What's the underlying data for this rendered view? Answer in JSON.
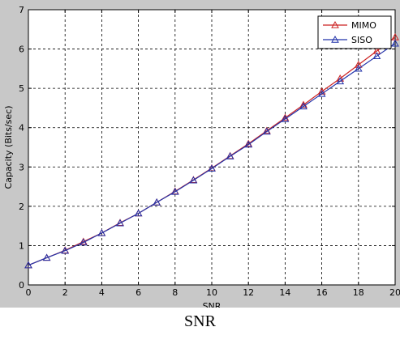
{
  "chart_data": {
    "type": "line",
    "title": "",
    "xlabel": "SNR",
    "ylabel": "Capacity (Bits/sec)",
    "xlim": [
      0,
      20
    ],
    "ylim": [
      0,
      7
    ],
    "x_ticks": [
      "0",
      "2",
      "4",
      "6",
      "8",
      "10",
      "12",
      "14",
      "16",
      "18",
      "20"
    ],
    "y_ticks": [
      "0",
      "1",
      "2",
      "3",
      "4",
      "5",
      "6",
      "7"
    ],
    "grid": true,
    "legend_position": "top-right",
    "x": [
      0,
      1,
      2,
      3,
      4,
      5,
      6,
      7,
      8,
      9,
      10,
      11,
      12,
      13,
      14,
      15,
      16,
      17,
      18,
      19,
      20
    ],
    "series": [
      {
        "name": "MIMO",
        "color": "#cc2222",
        "marker": "triangle",
        "values": [
          0.5,
          0.69,
          0.88,
          1.1,
          1.32,
          1.58,
          1.82,
          2.1,
          2.38,
          2.67,
          2.97,
          3.28,
          3.59,
          3.92,
          4.25,
          4.58,
          4.92,
          5.25,
          5.6,
          5.95,
          6.3
        ]
      },
      {
        "name": "SISO",
        "color": "#2233aa",
        "marker": "triangle",
        "values": [
          0.5,
          0.69,
          0.87,
          1.08,
          1.32,
          1.57,
          1.82,
          2.1,
          2.37,
          2.66,
          2.96,
          3.27,
          3.57,
          3.9,
          4.22,
          4.54,
          4.86,
          5.18,
          5.5,
          5.82,
          6.14
        ]
      }
    ]
  },
  "caption": "SNR"
}
